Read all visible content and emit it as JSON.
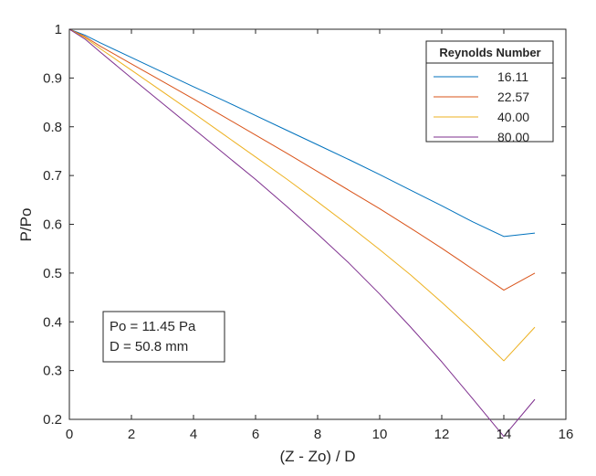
{
  "chart_data": {
    "type": "line",
    "title": "",
    "xlabel": "(Z - Zo) / D",
    "ylabel": "P/Po",
    "xlim": [
      0,
      16
    ],
    "ylim": [
      0.2,
      1
    ],
    "xticks": [
      "0",
      "2",
      "4",
      "6",
      "8",
      "10",
      "12",
      "14",
      "16"
    ],
    "yticks": [
      "0.2",
      "0.3",
      "0.4",
      "0.5",
      "0.6",
      "0.7",
      "0.8",
      "0.9",
      "1"
    ],
    "grid": false,
    "legend": {
      "title": "Reynolds Number",
      "placement": "top-right"
    },
    "x": [
      0,
      0.5,
      1,
      2,
      3,
      4,
      5,
      6,
      7,
      8,
      9,
      10,
      11,
      12,
      13,
      14,
      15
    ],
    "series": [
      {
        "name": "16.11",
        "color": "#0072BD",
        "values": [
          1.0,
          0.988,
          0.972,
          0.942,
          0.912,
          0.882,
          0.853,
          0.823,
          0.793,
          0.763,
          0.733,
          0.702,
          0.67,
          0.638,
          0.605,
          0.575,
          0.582
        ]
      },
      {
        "name": "22.57",
        "color": "#D95319",
        "values": [
          1.0,
          0.985,
          0.965,
          0.929,
          0.893,
          0.857,
          0.82,
          0.783,
          0.746,
          0.708,
          0.67,
          0.632,
          0.592,
          0.551,
          0.508,
          0.465,
          0.5
        ]
      },
      {
        "name": "40.00",
        "color": "#EDB120",
        "values": [
          1.0,
          0.983,
          0.96,
          0.916,
          0.872,
          0.828,
          0.783,
          0.738,
          0.693,
          0.646,
          0.598,
          0.548,
          0.496,
          0.44,
          0.382,
          0.32,
          0.389
        ]
      },
      {
        "name": "80.00",
        "color": "#7E2F8E",
        "values": [
          1.0,
          0.98,
          0.953,
          0.9,
          0.848,
          0.796,
          0.744,
          0.692,
          0.637,
          0.58,
          0.521,
          0.457,
          0.389,
          0.318,
          0.242,
          0.165,
          0.241
        ]
      }
    ],
    "annotations": [
      "Po = 11.45 Pa",
      "D = 50.8 mm"
    ]
  }
}
